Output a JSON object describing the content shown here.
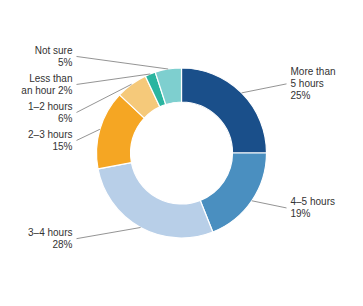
{
  "chart_data": {
    "type": "donut",
    "categories": [
      "More than\n5 hours\n25%",
      "4–5 hours\n19%",
      "3–4 hours\n28%",
      "2–3 hours\n15%",
      "1–2 hours\n6%",
      "Less than\nan hour 2%",
      "Not sure\n5%"
    ],
    "values": [
      25,
      19,
      28,
      15,
      6,
      2,
      5
    ],
    "colors": [
      "#1a4f8a",
      "#4a8fc0",
      "#b8cfe8",
      "#f5a623",
      "#f5c97a",
      "#2ab5a0",
      "#7ecfcf"
    ]
  }
}
